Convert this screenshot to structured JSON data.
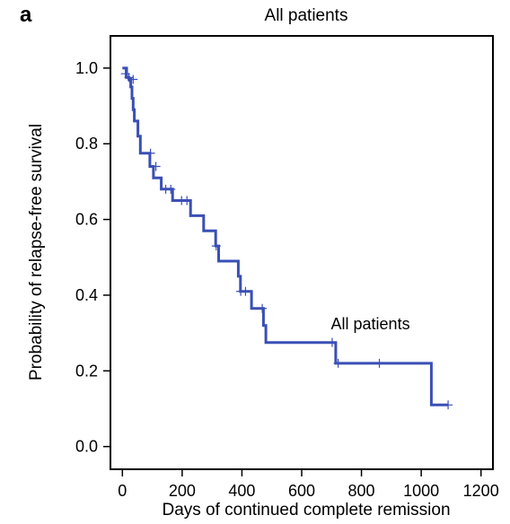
{
  "panel_label": "a",
  "chart_data": {
    "type": "line",
    "title": "All patients",
    "xlabel": "Days of continued complete remission",
    "ylabel": "Probability of relapse-free survival",
    "xlim": [
      -40,
      1240
    ],
    "ylim": [
      -0.06,
      1.085
    ],
    "xticks": [
      0,
      200,
      400,
      600,
      800,
      1000,
      1200
    ],
    "yticks": [
      0.0,
      0.2,
      0.4,
      0.6,
      0.8,
      1.0
    ],
    "ytick_labels": [
      "0.0",
      "0.2",
      "0.4",
      "0.6",
      "0.8",
      "1.0"
    ],
    "grid": false,
    "line_color": "#3a4fb5",
    "series": [
      {
        "name": "All patients",
        "step": [
          [
            0,
            1.0
          ],
          [
            14,
            0.975
          ],
          [
            22,
            0.97
          ],
          [
            28,
            0.95
          ],
          [
            32,
            0.92
          ],
          [
            36,
            0.89
          ],
          [
            40,
            0.86
          ],
          [
            52,
            0.82
          ],
          [
            60,
            0.775
          ],
          [
            92,
            0.74
          ],
          [
            104,
            0.71
          ],
          [
            130,
            0.68
          ],
          [
            168,
            0.65
          ],
          [
            228,
            0.61
          ],
          [
            272,
            0.57
          ],
          [
            312,
            0.53
          ],
          [
            322,
            0.49
          ],
          [
            388,
            0.45
          ],
          [
            395,
            0.41
          ],
          [
            432,
            0.365
          ],
          [
            472,
            0.32
          ],
          [
            480,
            0.275
          ],
          [
            714,
            0.22
          ],
          [
            1034,
            0.11
          ],
          [
            1090,
            0.11
          ]
        ],
        "censored": [
          [
            10,
            0.985
          ],
          [
            22,
            0.975
          ],
          [
            36,
            0.97
          ],
          [
            94,
            0.775
          ],
          [
            112,
            0.74
          ],
          [
            145,
            0.68
          ],
          [
            162,
            0.68
          ],
          [
            198,
            0.65
          ],
          [
            216,
            0.65
          ],
          [
            314,
            0.53
          ],
          [
            396,
            0.41
          ],
          [
            412,
            0.41
          ],
          [
            468,
            0.365
          ],
          [
            702,
            0.275
          ],
          [
            722,
            0.22
          ],
          [
            860,
            0.22
          ],
          [
            1090,
            0.11
          ]
        ]
      }
    ],
    "annotations": [
      {
        "text": "All patients",
        "x": 830,
        "y": 0.31
      }
    ]
  }
}
